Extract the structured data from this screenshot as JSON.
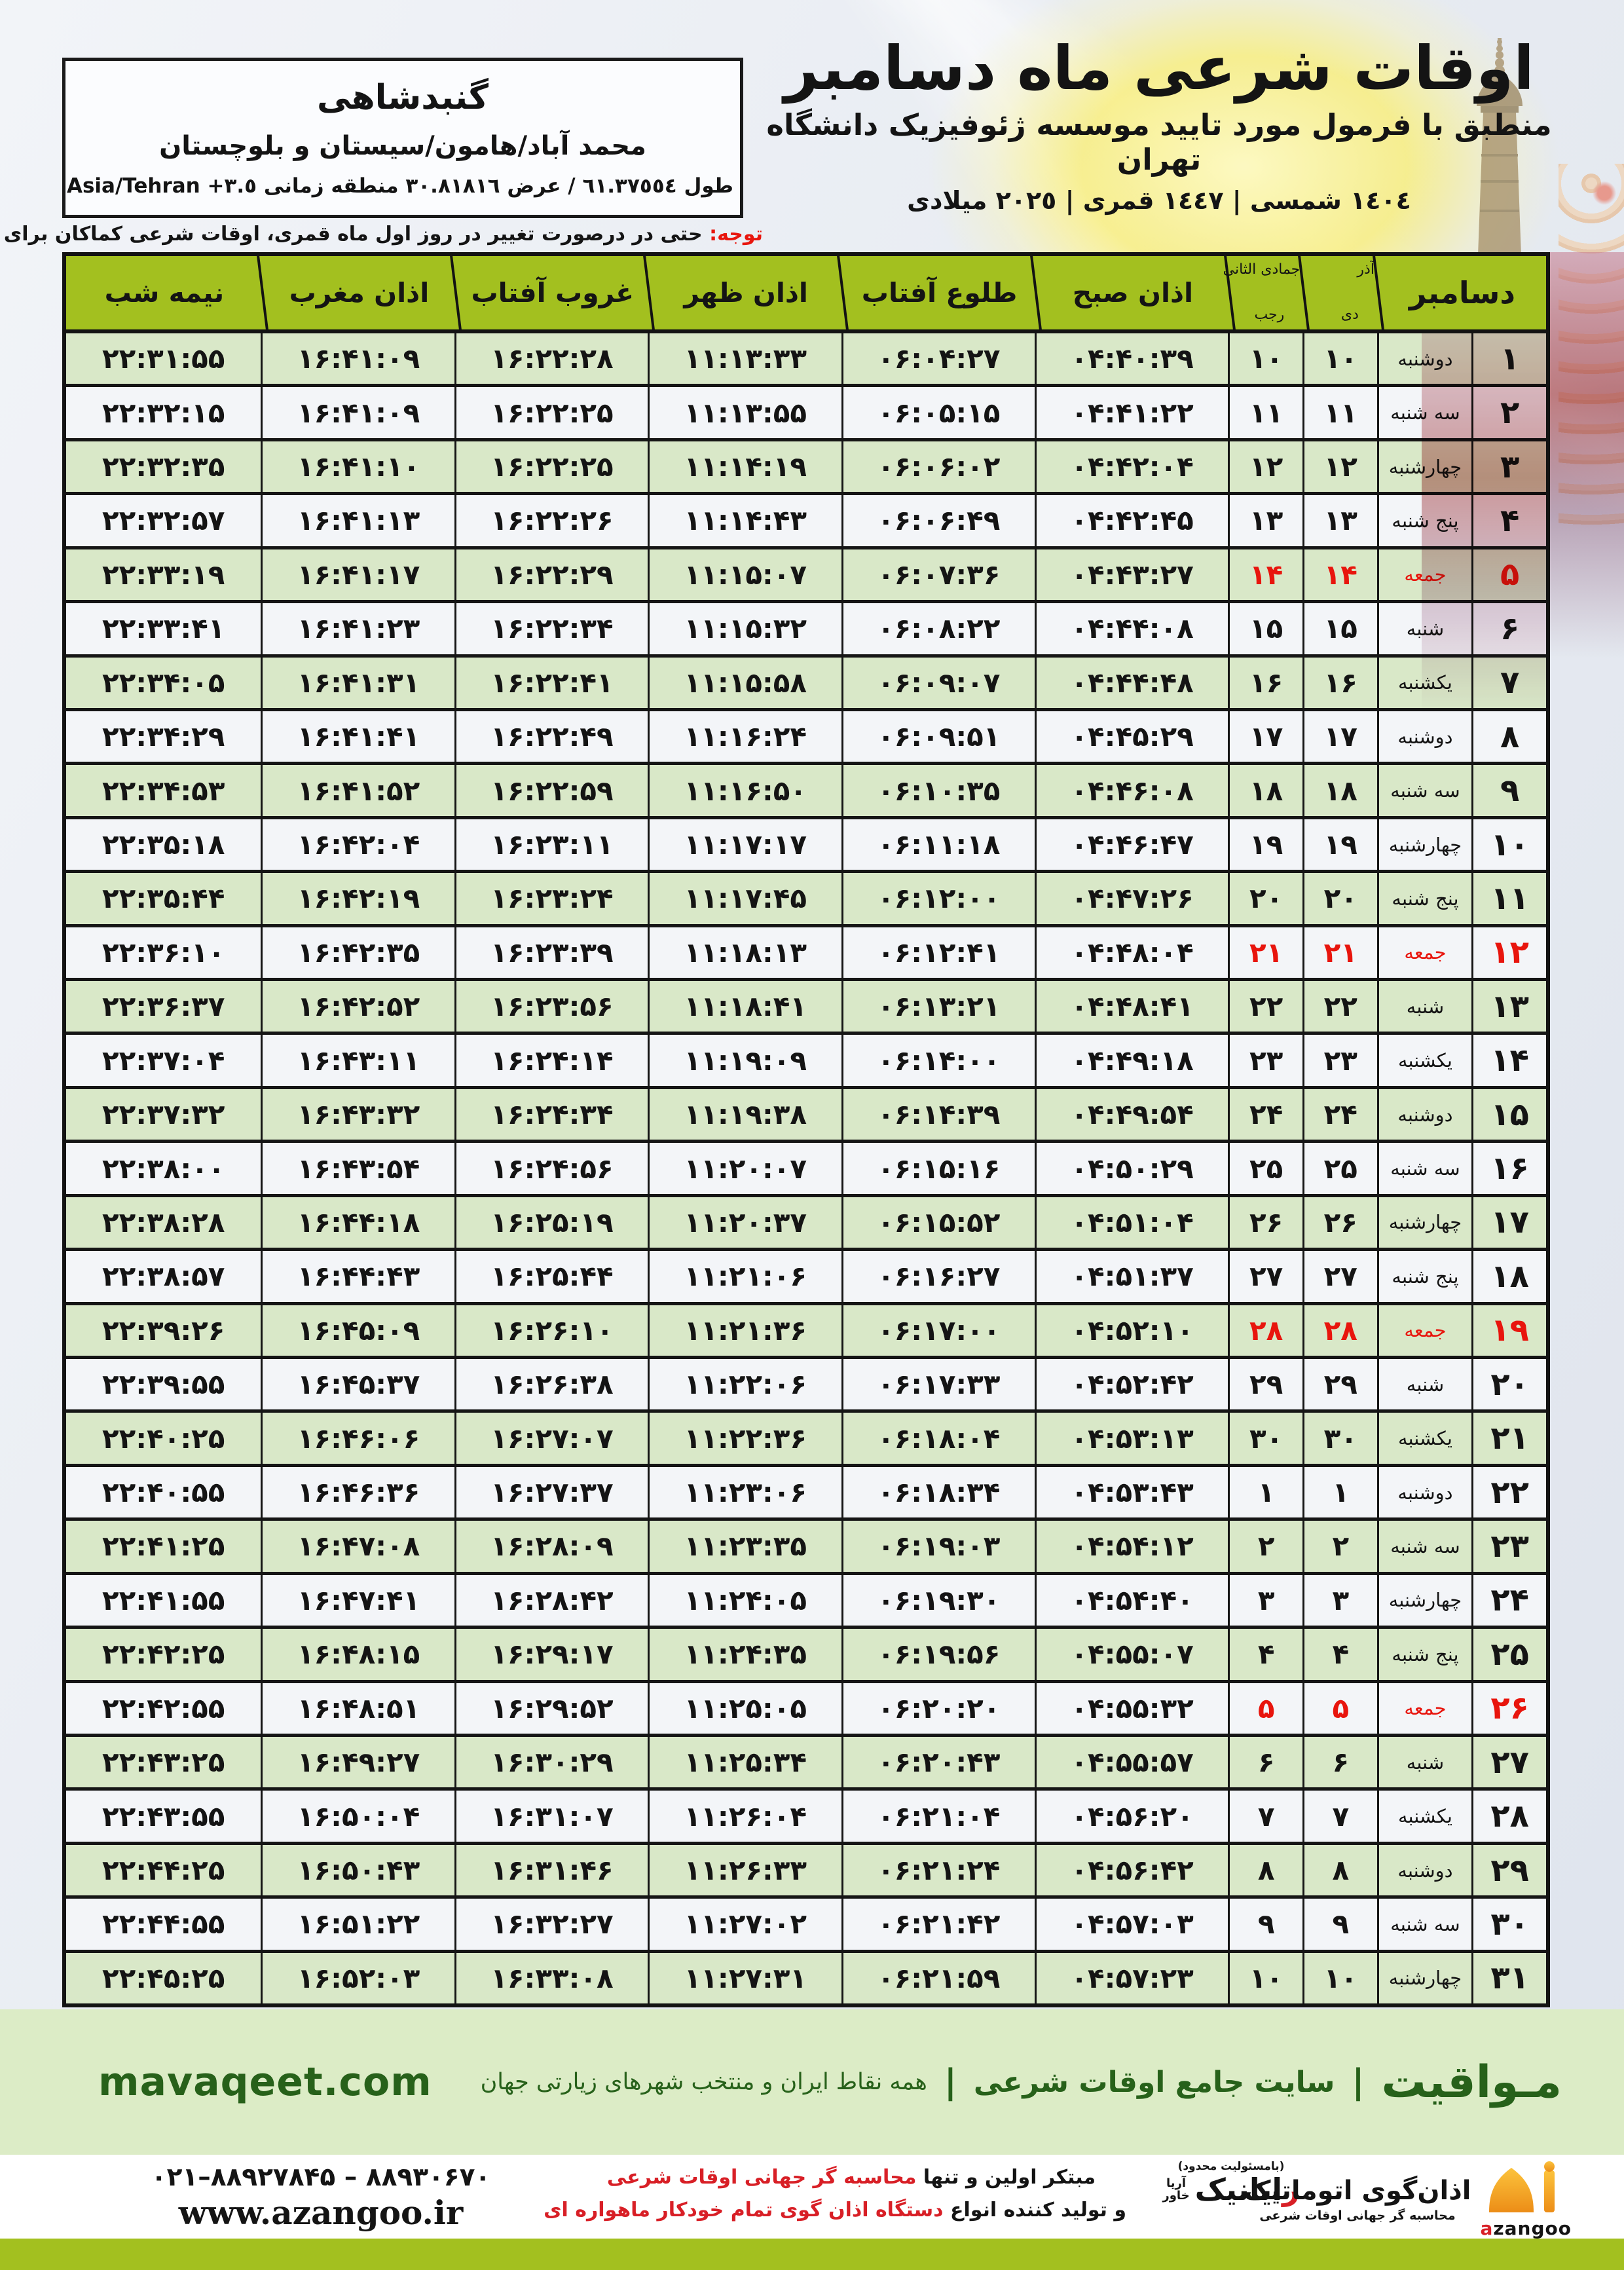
{
  "location": {
    "title": "گنبدشاهی",
    "region": "محمد آباد/هامون/سیستان و بلوچستان",
    "coords_fa": "طول ٦١.٣٧٥٥٤ / عرض ٣٠.٨١٨١٦ منطقه زمانی",
    "coords_tz": "Asia/Tehran +٣.٥"
  },
  "header": {
    "title": "اوقات شرعی ماه دسامبر",
    "subtitle": "منطبق با فرمول مورد تایید موسسه ژئوفیزیک دانشگاه تهران",
    "years": "١٤٠٤ شمسی | ١٤٤٧ قمری | ٢٠٢٥ میلادی"
  },
  "note": {
    "label": "توجه:",
    "text": " حتی در درصورت تغییر در روز اول ماه قمری، اوقات شرعی کماکان برای روزهای شمسی و میلادی معتبر است."
  },
  "table": {
    "header": {
      "december": "دسامبر",
      "solar_month_top": "آذر",
      "solar_month_bottom": "دی",
      "lunar_month_top": "جمادی الثانی",
      "lunar_month_bottom": "رجب",
      "sobh": "اذان صبح",
      "tolu": "طلوع آفتاب",
      "zohr": "اذان ظهر",
      "ghorub": "غروب آفتاب",
      "maghreb": "اذان مغرب",
      "nimeh": "نیمه شب"
    },
    "rows": [
      {
        "day": "۱",
        "wd": "دوشنبه",
        "solar": "۱۰",
        "lunar": "۱۰",
        "sobh": "۰۴:۴۰:۳۹",
        "tolu": "۰۶:۰۴:۲۷",
        "zohr": "۱۱:۱۳:۳۳",
        "ghorub": "۱۶:۲۲:۲۸",
        "maghreb": "۱۶:۴۱:۰۹",
        "nimeh": "۲۲:۳۱:۵۵",
        "fri": false
      },
      {
        "day": "۲",
        "wd": "سه شنبه",
        "solar": "۱۱",
        "lunar": "۱۱",
        "sobh": "۰۴:۴۱:۲۲",
        "tolu": "۰۶:۰۵:۱۵",
        "zohr": "۱۱:۱۳:۵۵",
        "ghorub": "۱۶:۲۲:۲۵",
        "maghreb": "۱۶:۴۱:۰۹",
        "nimeh": "۲۲:۳۲:۱۵",
        "fri": false
      },
      {
        "day": "۳",
        "wd": "چهارشنبه",
        "solar": "۱۲",
        "lunar": "۱۲",
        "sobh": "۰۴:۴۲:۰۴",
        "tolu": "۰۶:۰۶:۰۲",
        "zohr": "۱۱:۱۴:۱۹",
        "ghorub": "۱۶:۲۲:۲۵",
        "maghreb": "۱۶:۴۱:۱۰",
        "nimeh": "۲۲:۳۲:۳۵",
        "fri": false
      },
      {
        "day": "۴",
        "wd": "پنج شنبه",
        "solar": "۱۳",
        "lunar": "۱۳",
        "sobh": "۰۴:۴۲:۴۵",
        "tolu": "۰۶:۰۶:۴۹",
        "zohr": "۱۱:۱۴:۴۳",
        "ghorub": "۱۶:۲۲:۲۶",
        "maghreb": "۱۶:۴۱:۱۳",
        "nimeh": "۲۲:۳۲:۵۷",
        "fri": false
      },
      {
        "day": "۵",
        "wd": "جمعه",
        "solar": "۱۴",
        "lunar": "۱۴",
        "sobh": "۰۴:۴۳:۲۷",
        "tolu": "۰۶:۰۷:۳۶",
        "zohr": "۱۱:۱۵:۰۷",
        "ghorub": "۱۶:۲۲:۲۹",
        "maghreb": "۱۶:۴۱:۱۷",
        "nimeh": "۲۲:۳۳:۱۹",
        "fri": true
      },
      {
        "day": "۶",
        "wd": "شنبه",
        "solar": "۱۵",
        "lunar": "۱۵",
        "sobh": "۰۴:۴۴:۰۸",
        "tolu": "۰۶:۰۸:۲۲",
        "zohr": "۱۱:۱۵:۳۲",
        "ghorub": "۱۶:۲۲:۳۴",
        "maghreb": "۱۶:۴۱:۲۳",
        "nimeh": "۲۲:۳۳:۴۱",
        "fri": false
      },
      {
        "day": "۷",
        "wd": "یکشنبه",
        "solar": "۱۶",
        "lunar": "۱۶",
        "sobh": "۰۴:۴۴:۴۸",
        "tolu": "۰۶:۰۹:۰۷",
        "zohr": "۱۱:۱۵:۵۸",
        "ghorub": "۱۶:۲۲:۴۱",
        "maghreb": "۱۶:۴۱:۳۱",
        "nimeh": "۲۲:۳۴:۰۵",
        "fri": false
      },
      {
        "day": "۸",
        "wd": "دوشنبه",
        "solar": "۱۷",
        "lunar": "۱۷",
        "sobh": "۰۴:۴۵:۲۹",
        "tolu": "۰۶:۰۹:۵۱",
        "zohr": "۱۱:۱۶:۲۴",
        "ghorub": "۱۶:۲۲:۴۹",
        "maghreb": "۱۶:۴۱:۴۱",
        "nimeh": "۲۲:۳۴:۲۹",
        "fri": false
      },
      {
        "day": "۹",
        "wd": "سه شنبه",
        "solar": "۱۸",
        "lunar": "۱۸",
        "sobh": "۰۴:۴۶:۰۸",
        "tolu": "۰۶:۱۰:۳۵",
        "zohr": "۱۱:۱۶:۵۰",
        "ghorub": "۱۶:۲۲:۵۹",
        "maghreb": "۱۶:۴۱:۵۲",
        "nimeh": "۲۲:۳۴:۵۳",
        "fri": false
      },
      {
        "day": "۱۰",
        "wd": "چهارشنبه",
        "solar": "۱۹",
        "lunar": "۱۹",
        "sobh": "۰۴:۴۶:۴۷",
        "tolu": "۰۶:۱۱:۱۸",
        "zohr": "۱۱:۱۷:۱۷",
        "ghorub": "۱۶:۲۳:۱۱",
        "maghreb": "۱۶:۴۲:۰۴",
        "nimeh": "۲۲:۳۵:۱۸",
        "fri": false
      },
      {
        "day": "۱۱",
        "wd": "پنج شنبه",
        "solar": "۲۰",
        "lunar": "۲۰",
        "sobh": "۰۴:۴۷:۲۶",
        "tolu": "۰۶:۱۲:۰۰",
        "zohr": "۱۱:۱۷:۴۵",
        "ghorub": "۱۶:۲۳:۲۴",
        "maghreb": "۱۶:۴۲:۱۹",
        "nimeh": "۲۲:۳۵:۴۴",
        "fri": false
      },
      {
        "day": "۱۲",
        "wd": "جمعه",
        "solar": "۲۱",
        "lunar": "۲۱",
        "sobh": "۰۴:۴۸:۰۴",
        "tolu": "۰۶:۱۲:۴۱",
        "zohr": "۱۱:۱۸:۱۳",
        "ghorub": "۱۶:۲۳:۳۹",
        "maghreb": "۱۶:۴۲:۳۵",
        "nimeh": "۲۲:۳۶:۱۰",
        "fri": true
      },
      {
        "day": "۱۳",
        "wd": "شنبه",
        "solar": "۲۲",
        "lunar": "۲۲",
        "sobh": "۰۴:۴۸:۴۱",
        "tolu": "۰۶:۱۳:۲۱",
        "zohr": "۱۱:۱۸:۴۱",
        "ghorub": "۱۶:۲۳:۵۶",
        "maghreb": "۱۶:۴۲:۵۲",
        "nimeh": "۲۲:۳۶:۳۷",
        "fri": false
      },
      {
        "day": "۱۴",
        "wd": "یکشنبه",
        "solar": "۲۳",
        "lunar": "۲۳",
        "sobh": "۰۴:۴۹:۱۸",
        "tolu": "۰۶:۱۴:۰۰",
        "zohr": "۱۱:۱۹:۰۹",
        "ghorub": "۱۶:۲۴:۱۴",
        "maghreb": "۱۶:۴۳:۱۱",
        "nimeh": "۲۲:۳۷:۰۴",
        "fri": false
      },
      {
        "day": "۱۵",
        "wd": "دوشنبه",
        "solar": "۲۴",
        "lunar": "۲۴",
        "sobh": "۰۴:۴۹:۵۴",
        "tolu": "۰۶:۱۴:۳۹",
        "zohr": "۱۱:۱۹:۳۸",
        "ghorub": "۱۶:۲۴:۳۴",
        "maghreb": "۱۶:۴۳:۳۲",
        "nimeh": "۲۲:۳۷:۳۲",
        "fri": false
      },
      {
        "day": "۱۶",
        "wd": "سه شنبه",
        "solar": "۲۵",
        "lunar": "۲۵",
        "sobh": "۰۴:۵۰:۲۹",
        "tolu": "۰۶:۱۵:۱۶",
        "zohr": "۱۱:۲۰:۰۷",
        "ghorub": "۱۶:۲۴:۵۶",
        "maghreb": "۱۶:۴۳:۵۴",
        "nimeh": "۲۲:۳۸:۰۰",
        "fri": false
      },
      {
        "day": "۱۷",
        "wd": "چهارشنبه",
        "solar": "۲۶",
        "lunar": "۲۶",
        "sobh": "۰۴:۵۱:۰۴",
        "tolu": "۰۶:۱۵:۵۲",
        "zohr": "۱۱:۲۰:۳۷",
        "ghorub": "۱۶:۲۵:۱۹",
        "maghreb": "۱۶:۴۴:۱۸",
        "nimeh": "۲۲:۳۸:۲۸",
        "fri": false
      },
      {
        "day": "۱۸",
        "wd": "پنج شنبه",
        "solar": "۲۷",
        "lunar": "۲۷",
        "sobh": "۰۴:۵۱:۳۷",
        "tolu": "۰۶:۱۶:۲۷",
        "zohr": "۱۱:۲۱:۰۶",
        "ghorub": "۱۶:۲۵:۴۴",
        "maghreb": "۱۶:۴۴:۴۳",
        "nimeh": "۲۲:۳۸:۵۷",
        "fri": false
      },
      {
        "day": "۱۹",
        "wd": "جمعه",
        "solar": "۲۸",
        "lunar": "۲۸",
        "sobh": "۰۴:۵۲:۱۰",
        "tolu": "۰۶:۱۷:۰۰",
        "zohr": "۱۱:۲۱:۳۶",
        "ghorub": "۱۶:۲۶:۱۰",
        "maghreb": "۱۶:۴۵:۰۹",
        "nimeh": "۲۲:۳۹:۲۶",
        "fri": true
      },
      {
        "day": "۲۰",
        "wd": "شنبه",
        "solar": "۲۹",
        "lunar": "۲۹",
        "sobh": "۰۴:۵۲:۴۲",
        "tolu": "۰۶:۱۷:۳۳",
        "zohr": "۱۱:۲۲:۰۶",
        "ghorub": "۱۶:۲۶:۳۸",
        "maghreb": "۱۶:۴۵:۳۷",
        "nimeh": "۲۲:۳۹:۵۵",
        "fri": false
      },
      {
        "day": "۲۱",
        "wd": "یکشنبه",
        "solar": "۳۰",
        "lunar": "۳۰",
        "sobh": "۰۴:۵۳:۱۳",
        "tolu": "۰۶:۱۸:۰۴",
        "zohr": "۱۱:۲۲:۳۶",
        "ghorub": "۱۶:۲۷:۰۷",
        "maghreb": "۱۶:۴۶:۰۶",
        "nimeh": "۲۲:۴۰:۲۵",
        "fri": false
      },
      {
        "day": "۲۲",
        "wd": "دوشنبه",
        "solar": "۱",
        "lunar": "۱",
        "sobh": "۰۴:۵۳:۴۳",
        "tolu": "۰۶:۱۸:۳۴",
        "zohr": "۱۱:۲۳:۰۶",
        "ghorub": "۱۶:۲۷:۳۷",
        "maghreb": "۱۶:۴۶:۳۶",
        "nimeh": "۲۲:۴۰:۵۵",
        "fri": false
      },
      {
        "day": "۲۳",
        "wd": "سه شنبه",
        "solar": "۲",
        "lunar": "۲",
        "sobh": "۰۴:۵۴:۱۲",
        "tolu": "۰۶:۱۹:۰۳",
        "zohr": "۱۱:۲۳:۳۵",
        "ghorub": "۱۶:۲۸:۰۹",
        "maghreb": "۱۶:۴۷:۰۸",
        "nimeh": "۲۲:۴۱:۲۵",
        "fri": false
      },
      {
        "day": "۲۴",
        "wd": "چهارشنبه",
        "solar": "۳",
        "lunar": "۳",
        "sobh": "۰۴:۵۴:۴۰",
        "tolu": "۰۶:۱۹:۳۰",
        "zohr": "۱۱:۲۴:۰۵",
        "ghorub": "۱۶:۲۸:۴۲",
        "maghreb": "۱۶:۴۷:۴۱",
        "nimeh": "۲۲:۴۱:۵۵",
        "fri": false
      },
      {
        "day": "۲۵",
        "wd": "پنج شنبه",
        "solar": "۴",
        "lunar": "۴",
        "sobh": "۰۴:۵۵:۰۷",
        "tolu": "۰۶:۱۹:۵۶",
        "zohr": "۱۱:۲۴:۳۵",
        "ghorub": "۱۶:۲۹:۱۷",
        "maghreb": "۱۶:۴۸:۱۵",
        "nimeh": "۲۲:۴۲:۲۵",
        "fri": false
      },
      {
        "day": "۲۶",
        "wd": "جمعه",
        "solar": "۵",
        "lunar": "۵",
        "sobh": "۰۴:۵۵:۳۲",
        "tolu": "۰۶:۲۰:۲۰",
        "zohr": "۱۱:۲۵:۰۵",
        "ghorub": "۱۶:۲۹:۵۲",
        "maghreb": "۱۶:۴۸:۵۱",
        "nimeh": "۲۲:۴۲:۵۵",
        "fri": true
      },
      {
        "day": "۲۷",
        "wd": "شنبه",
        "solar": "۶",
        "lunar": "۶",
        "sobh": "۰۴:۵۵:۵۷",
        "tolu": "۰۶:۲۰:۴۳",
        "zohr": "۱۱:۲۵:۳۴",
        "ghorub": "۱۶:۳۰:۲۹",
        "maghreb": "۱۶:۴۹:۲۷",
        "nimeh": "۲۲:۴۳:۲۵",
        "fri": false
      },
      {
        "day": "۲۸",
        "wd": "یکشنبه",
        "solar": "۷",
        "lunar": "۷",
        "sobh": "۰۴:۵۶:۲۰",
        "tolu": "۰۶:۲۱:۰۴",
        "zohr": "۱۱:۲۶:۰۴",
        "ghorub": "۱۶:۳۱:۰۷",
        "maghreb": "۱۶:۵۰:۰۴",
        "nimeh": "۲۲:۴۳:۵۵",
        "fri": false
      },
      {
        "day": "۲۹",
        "wd": "دوشنبه",
        "solar": "۸",
        "lunar": "۸",
        "sobh": "۰۴:۵۶:۴۲",
        "tolu": "۰۶:۲۱:۲۴",
        "zohr": "۱۱:۲۶:۳۳",
        "ghorub": "۱۶:۳۱:۴۶",
        "maghreb": "۱۶:۵۰:۴۳",
        "nimeh": "۲۲:۴۴:۲۵",
        "fri": false
      },
      {
        "day": "۳۰",
        "wd": "سه شنبه",
        "solar": "۹",
        "lunar": "۹",
        "sobh": "۰۴:۵۷:۰۳",
        "tolu": "۰۶:۲۱:۴۲",
        "zohr": "۱۱:۲۷:۰۲",
        "ghorub": "۱۶:۳۲:۲۷",
        "maghreb": "۱۶:۵۱:۲۲",
        "nimeh": "۲۲:۴۴:۵۵",
        "fri": false
      },
      {
        "day": "۳۱",
        "wd": "چهارشنبه",
        "solar": "۱۰",
        "lunar": "۱۰",
        "sobh": "۰۴:۵۷:۲۳",
        "tolu": "۰۶:۲۱:۵۹",
        "zohr": "۱۱:۲۷:۳۱",
        "ghorub": "۱۶:۳۳:۰۸",
        "maghreb": "۱۶:۵۲:۰۳",
        "nimeh": "۲۲:۴۵:۲۵",
        "fri": false
      }
    ]
  },
  "band": {
    "site_fa": "مـواقیت",
    "sep": "|",
    "tag1": "سایت جامع اوقات شرعی",
    "tag2": "همه نقاط ایران و منتخب شهرهای زیارتی جهان",
    "site_en": "mavaqeet.com"
  },
  "bottom": {
    "line1_black": "مبتکر اولین و تنها ",
    "line1_red": "محاسبه گر جهانی اوقات شرعی",
    "line2_black": "و تولید کننده انواع ",
    "line2_red": "دستگاه اذان گوی تمام خودکار ماهواره ای",
    "rayanik_note": "(بامسئولیت محدود)",
    "rayanik_first": "ر",
    "rayanik_rest": "ایانیک",
    "rayanik_sub_top": "آریا",
    "rayanik_sub_bottom": "خاور",
    "azangoo_fa": "اذان‌گوی اتوماتیک",
    "azangoo_tag": "محاسبه گر جهانی اوقات شرعی",
    "azangoo_en_a": "a",
    "azangoo_en_rest": "zangoo",
    "phone": "۰۲۱–۸۸۹۲۷۸۴۵ – ۸۸۹۳۰۶۷۰",
    "website": "www.azangoo.ir"
  },
  "colors": {
    "header_green": "#a3c01f",
    "row_green": "#d9e8c8",
    "band_green": "#dcecc6",
    "friday_red": "#e8150d",
    "brand_red": "#d81f26",
    "dark_green": "#27611a",
    "azangoo_orange": "#f5a023"
  }
}
